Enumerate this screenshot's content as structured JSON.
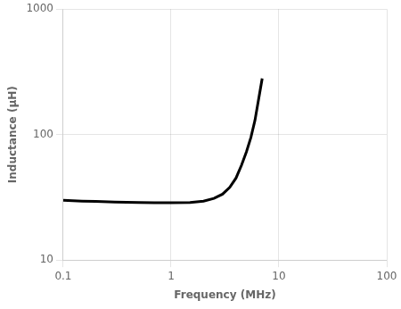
{
  "chart_data": {
    "type": "line",
    "xlabel": "Frequency (MHz)",
    "ylabel": "Inductance (μH)",
    "x": [
      0.1,
      0.15,
      0.2,
      0.3,
      0.5,
      0.7,
      1.0,
      1.5,
      2.0,
      2.5,
      3.0,
      3.5,
      4.0,
      4.5,
      5.0,
      5.5,
      6.0,
      7.0
    ],
    "values": [
      30.0,
      29.5,
      29.3,
      29.0,
      28.7,
      28.6,
      28.6,
      28.8,
      29.5,
      31.0,
      33.5,
      38.0,
      45.0,
      57.0,
      73.0,
      95.0,
      130.0,
      280.0
    ],
    "color": "#000000",
    "xlim": [
      0.1,
      100
    ],
    "ylim": [
      10,
      1000
    ],
    "xticks": [
      0.1,
      1,
      10,
      100
    ],
    "yticks": [
      10,
      100,
      1000
    ],
    "log": true,
    "grid": true
  }
}
